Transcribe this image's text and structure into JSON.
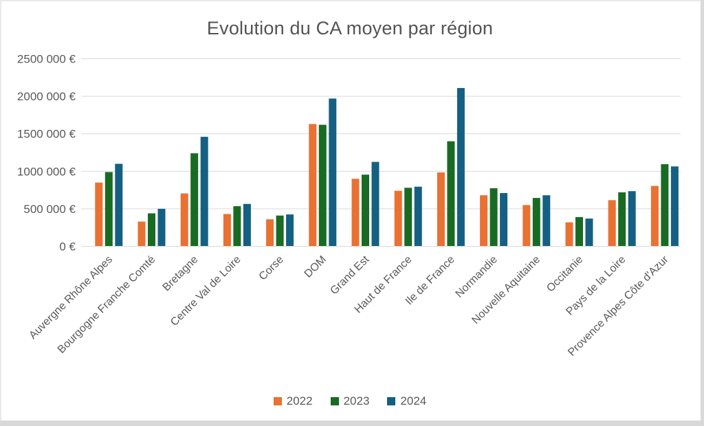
{
  "chart_data": {
    "type": "bar",
    "title": "Evolution du CA moyen par région",
    "xlabel": "",
    "ylabel": "",
    "ylim": [
      0,
      2500000
    ],
    "grid": true,
    "legend_position": "bottom",
    "currency_unit": "€",
    "categories": [
      "Auvergne Rhône Alpes",
      "Bourgogne Franche Comté",
      "Bretagne",
      "Centre Val de Loire",
      "Corse",
      "DOM",
      "Grand Est",
      "Haut de France",
      "Ile de France",
      "Normandie",
      "Nouvelle Aquitaine",
      "Occitanie",
      "Pays de la Loire",
      "Provence Alpes Côte d'Azur"
    ],
    "series": [
      {
        "name": "2022",
        "color": "#E97132",
        "values": [
          850000,
          330000,
          705000,
          430000,
          360000,
          1630000,
          900000,
          740000,
          985000,
          680000,
          550000,
          320000,
          615000,
          805000
        ]
      },
      {
        "name": "2023",
        "color": "#196B24",
        "values": [
          990000,
          440000,
          1240000,
          535000,
          410000,
          1620000,
          955000,
          780000,
          1400000,
          775000,
          645000,
          390000,
          720000,
          1095000
        ]
      },
      {
        "name": "2024",
        "color": "#156082",
        "values": [
          1100000,
          500000,
          1460000,
          565000,
          425000,
          1970000,
          1125000,
          795000,
          2110000,
          710000,
          680000,
          370000,
          735000,
          1065000
        ]
      }
    ],
    "yticks": [
      {
        "value": 0,
        "label": "0 €"
      },
      {
        "value": 500000,
        "label": "500 000 €"
      },
      {
        "value": 1000000,
        "label": "1000 000 €"
      },
      {
        "value": 1500000,
        "label": "1500 000 €"
      },
      {
        "value": 2000000,
        "label": "2000 000 €"
      },
      {
        "value": 2500000,
        "label": "2500 000 €"
      }
    ]
  },
  "colors": {
    "background": "#FFFFFF",
    "text": "#595959",
    "title_text": "#535353",
    "gridline": "#D9D9D9",
    "axis_line": "#D9D9D9",
    "edge_strip": "#D8D8D8"
  }
}
